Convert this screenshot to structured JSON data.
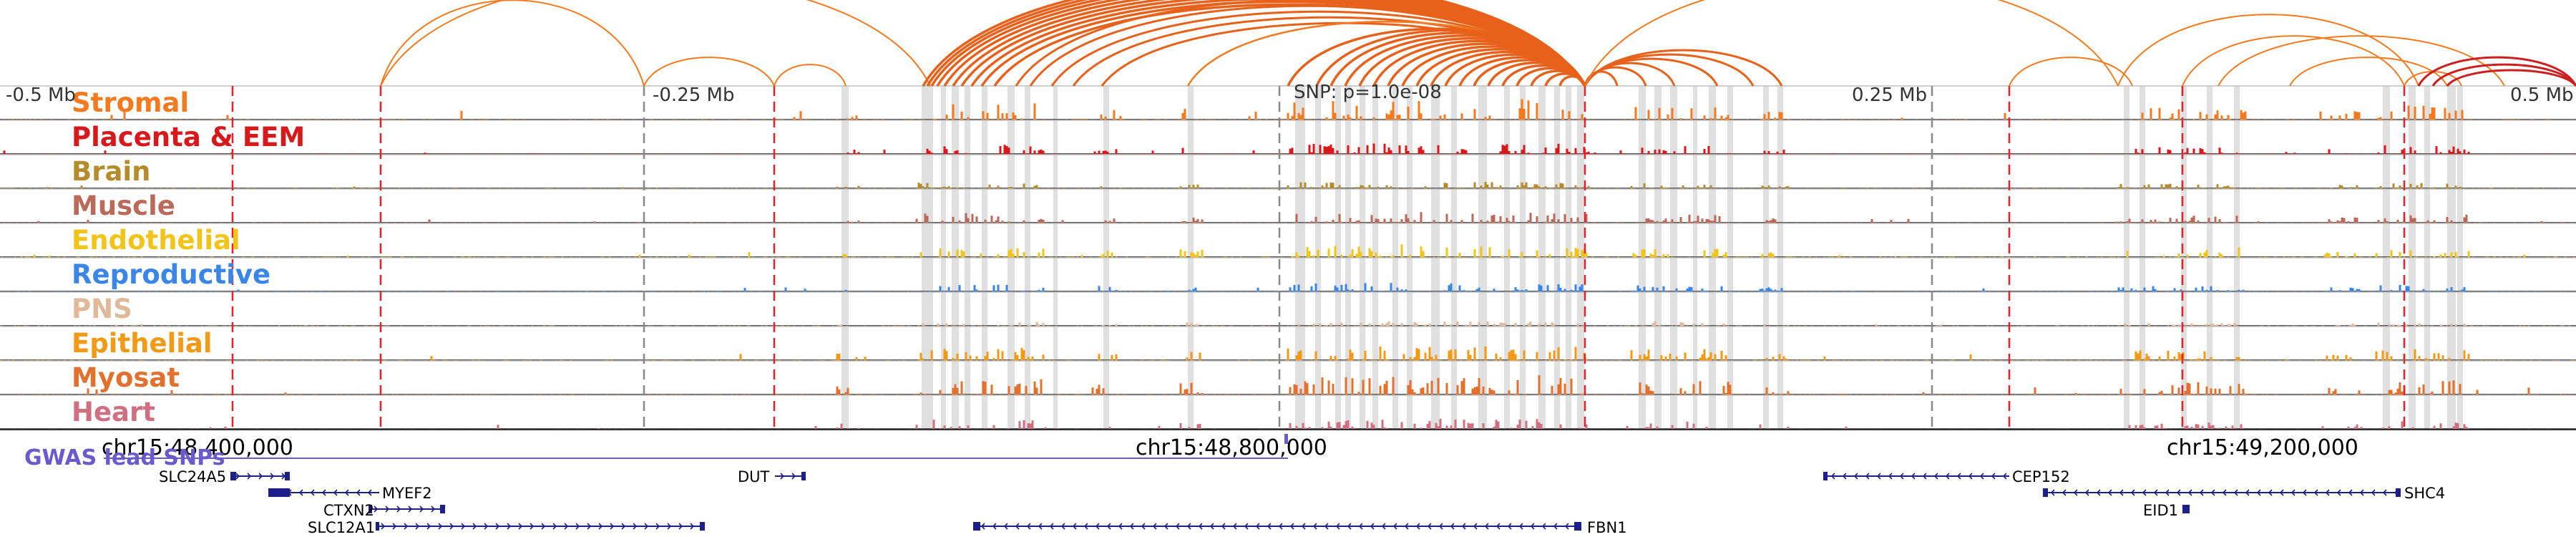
{
  "tracks": [
    {
      "name": "Stromal",
      "color": "#f47a1f"
    },
    {
      "name": "Placenta & EEM",
      "color": "#d7191c"
    },
    {
      "name": "Brain",
      "color": "#b58b2b"
    },
    {
      "name": "Muscle",
      "color": "#bb6a5a"
    },
    {
      "name": "Endothelial",
      "color": "#f2c418"
    },
    {
      "name": "Reproductive",
      "color": "#3a86e8"
    },
    {
      "name": "PNS",
      "color": "#dfb99a"
    },
    {
      "name": "Epithelial",
      "color": "#f29a15"
    },
    {
      "name": "Myosat",
      "color": "#e3712e"
    },
    {
      "name": "Heart",
      "color": "#d06f82"
    }
  ],
  "axis_labels": {
    "left": "-0.5 Mb",
    "minus_quarter": "-0.25 Mb",
    "snp": "SNP: p=1.0e-08",
    "plus_quarter": "0.25 Mb",
    "right": "0.5 Mb"
  },
  "coordinates": [
    "chr15:48,400,000",
    "chr15:48,800,000",
    "chr15:49,200,000"
  ],
  "gwas": {
    "label": "GWAS lead SNPs"
  },
  "genes": [
    {
      "name": "SLC24A5",
      "strand": "+"
    },
    {
      "name": "MYEF2",
      "strand": "-"
    },
    {
      "name": "CTXN2",
      "strand": "+"
    },
    {
      "name": "SLC12A1",
      "strand": "+"
    },
    {
      "name": "DUT",
      "strand": "+"
    },
    {
      "name": "FBN1",
      "strand": "-"
    },
    {
      "name": "CEP152",
      "strand": "-"
    },
    {
      "name": "SHC4",
      "strand": "-"
    },
    {
      "name": "EID1",
      "strand": "+"
    }
  ],
  "colors": {
    "arc": "#f47a1f",
    "arc_strong": "#e8611a",
    "arc_red": "#cc1f1f",
    "highlight": "#e0e0e0",
    "dashed_red": "#e8202a",
    "dashed_grey": "#888888",
    "gene": "#1f1f8c",
    "gwas_line": "#6a5acd"
  }
}
